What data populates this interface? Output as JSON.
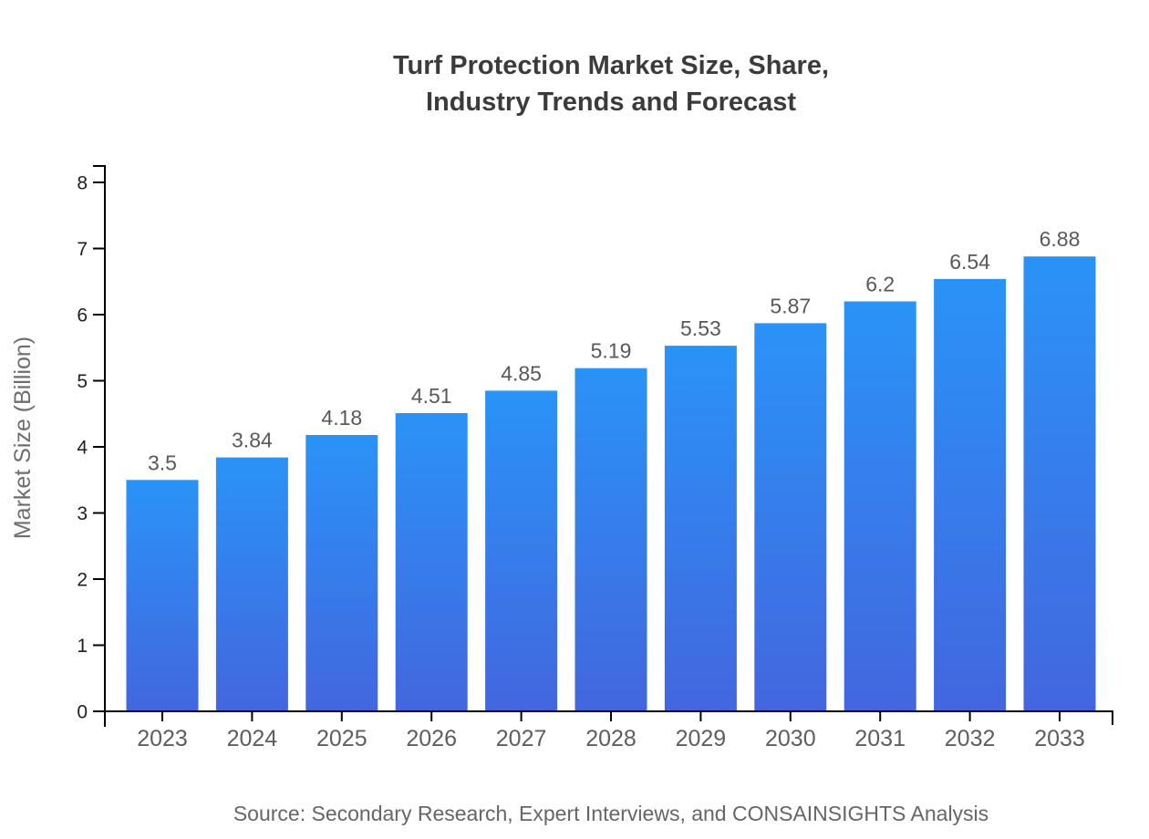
{
  "chart_data": {
    "type": "bar",
    "title": "Turf Protection Market Size, Share, Industry Trends and Forecast",
    "title_lines": [
      "Turf Protection Market Size, Share,",
      "Industry Trends and Forecast"
    ],
    "categories": [
      "2023",
      "2024",
      "2025",
      "2026",
      "2027",
      "2028",
      "2029",
      "2030",
      "2031",
      "2032",
      "2033"
    ],
    "values": [
      3.5,
      3.84,
      4.18,
      4.51,
      4.85,
      5.19,
      5.53,
      5.87,
      6.2,
      6.54,
      6.88
    ],
    "value_labels": [
      "3.5",
      "3.84",
      "4.18",
      "4.51",
      "4.85",
      "5.19",
      "5.53",
      "5.87",
      "6.2",
      "6.54",
      "6.88"
    ],
    "xlabel": "",
    "ylabel": "Market Size (Billion)",
    "ylim": [
      0,
      8
    ],
    "yticks": [
      0,
      1,
      2,
      3,
      4,
      5,
      6,
      7,
      8
    ],
    "grid": false,
    "legend_position": "none",
    "source_note": "Source: Secondary Research, Expert Interviews, and CONSAINSIGHTS Analysis",
    "colors": {
      "bar_gradient_top": "#2A93F6",
      "bar_gradient_bottom": "#4366DF",
      "axis_line": "#000000",
      "title_text": "#3B3B3B",
      "y_tick_label": "#1F1F1F",
      "x_tick_label": "#5E5E5E",
      "value_label": "#595959",
      "y_axis_title": "#6E6E6E",
      "source_text": "#666666",
      "background": "#FFFFFF"
    }
  }
}
